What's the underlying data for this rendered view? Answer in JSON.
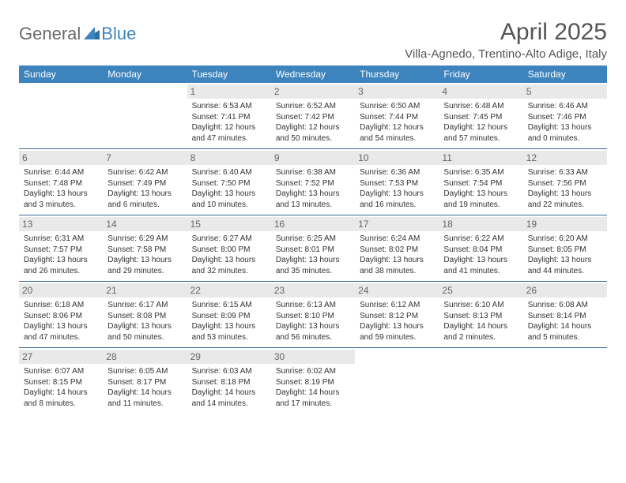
{
  "logo": {
    "general": "General",
    "blue": "Blue"
  },
  "title": "April 2025",
  "location": "Villa-Agnedo, Trentino-Alto Adige, Italy",
  "colors": {
    "header_bg": "#3d83bd",
    "header_text": "#ffffff",
    "rule": "#3d6b99",
    "daynum_bg": "#e9e9e9",
    "daynum_text": "#666666",
    "body_text": "#333333",
    "logo_gray": "#6a6a6a",
    "logo_blue": "#3d83bd"
  },
  "typography": {
    "title_fontsize": 30,
    "location_fontsize": 15,
    "header_fontsize": 12,
    "daynum_fontsize": 12,
    "cell_fontsize": 10
  },
  "layout": {
    "columns": 7,
    "rows": 5,
    "first_weekday_index": 2
  },
  "day_headers": [
    "Sunday",
    "Monday",
    "Tuesday",
    "Wednesday",
    "Thursday",
    "Friday",
    "Saturday"
  ],
  "days": [
    {
      "n": 1,
      "sunrise": "6:53 AM",
      "sunset": "7:41 PM",
      "daylight": "12 hours and 47 minutes."
    },
    {
      "n": 2,
      "sunrise": "6:52 AM",
      "sunset": "7:42 PM",
      "daylight": "12 hours and 50 minutes."
    },
    {
      "n": 3,
      "sunrise": "6:50 AM",
      "sunset": "7:44 PM",
      "daylight": "12 hours and 54 minutes."
    },
    {
      "n": 4,
      "sunrise": "6:48 AM",
      "sunset": "7:45 PM",
      "daylight": "12 hours and 57 minutes."
    },
    {
      "n": 5,
      "sunrise": "6:46 AM",
      "sunset": "7:46 PM",
      "daylight": "13 hours and 0 minutes."
    },
    {
      "n": 6,
      "sunrise": "6:44 AM",
      "sunset": "7:48 PM",
      "daylight": "13 hours and 3 minutes."
    },
    {
      "n": 7,
      "sunrise": "6:42 AM",
      "sunset": "7:49 PM",
      "daylight": "13 hours and 6 minutes."
    },
    {
      "n": 8,
      "sunrise": "6:40 AM",
      "sunset": "7:50 PM",
      "daylight": "13 hours and 10 minutes."
    },
    {
      "n": 9,
      "sunrise": "6:38 AM",
      "sunset": "7:52 PM",
      "daylight": "13 hours and 13 minutes."
    },
    {
      "n": 10,
      "sunrise": "6:36 AM",
      "sunset": "7:53 PM",
      "daylight": "13 hours and 16 minutes."
    },
    {
      "n": 11,
      "sunrise": "6:35 AM",
      "sunset": "7:54 PM",
      "daylight": "13 hours and 19 minutes."
    },
    {
      "n": 12,
      "sunrise": "6:33 AM",
      "sunset": "7:56 PM",
      "daylight": "13 hours and 22 minutes."
    },
    {
      "n": 13,
      "sunrise": "6:31 AM",
      "sunset": "7:57 PM",
      "daylight": "13 hours and 26 minutes."
    },
    {
      "n": 14,
      "sunrise": "6:29 AM",
      "sunset": "7:58 PM",
      "daylight": "13 hours and 29 minutes."
    },
    {
      "n": 15,
      "sunrise": "6:27 AM",
      "sunset": "8:00 PM",
      "daylight": "13 hours and 32 minutes."
    },
    {
      "n": 16,
      "sunrise": "6:25 AM",
      "sunset": "8:01 PM",
      "daylight": "13 hours and 35 minutes."
    },
    {
      "n": 17,
      "sunrise": "6:24 AM",
      "sunset": "8:02 PM",
      "daylight": "13 hours and 38 minutes."
    },
    {
      "n": 18,
      "sunrise": "6:22 AM",
      "sunset": "8:04 PM",
      "daylight": "13 hours and 41 minutes."
    },
    {
      "n": 19,
      "sunrise": "6:20 AM",
      "sunset": "8:05 PM",
      "daylight": "13 hours and 44 minutes."
    },
    {
      "n": 20,
      "sunrise": "6:18 AM",
      "sunset": "8:06 PM",
      "daylight": "13 hours and 47 minutes."
    },
    {
      "n": 21,
      "sunrise": "6:17 AM",
      "sunset": "8:08 PM",
      "daylight": "13 hours and 50 minutes."
    },
    {
      "n": 22,
      "sunrise": "6:15 AM",
      "sunset": "8:09 PM",
      "daylight": "13 hours and 53 minutes."
    },
    {
      "n": 23,
      "sunrise": "6:13 AM",
      "sunset": "8:10 PM",
      "daylight": "13 hours and 56 minutes."
    },
    {
      "n": 24,
      "sunrise": "6:12 AM",
      "sunset": "8:12 PM",
      "daylight": "13 hours and 59 minutes."
    },
    {
      "n": 25,
      "sunrise": "6:10 AM",
      "sunset": "8:13 PM",
      "daylight": "14 hours and 2 minutes."
    },
    {
      "n": 26,
      "sunrise": "6:08 AM",
      "sunset": "8:14 PM",
      "daylight": "14 hours and 5 minutes."
    },
    {
      "n": 27,
      "sunrise": "6:07 AM",
      "sunset": "8:15 PM",
      "daylight": "14 hours and 8 minutes."
    },
    {
      "n": 28,
      "sunrise": "6:05 AM",
      "sunset": "8:17 PM",
      "daylight": "14 hours and 11 minutes."
    },
    {
      "n": 29,
      "sunrise": "6:03 AM",
      "sunset": "8:18 PM",
      "daylight": "14 hours and 14 minutes."
    },
    {
      "n": 30,
      "sunrise": "6:02 AM",
      "sunset": "8:19 PM",
      "daylight": "14 hours and 17 minutes."
    }
  ],
  "labels": {
    "sunrise": "Sunrise:",
    "sunset": "Sunset:",
    "daylight": "Daylight:"
  }
}
